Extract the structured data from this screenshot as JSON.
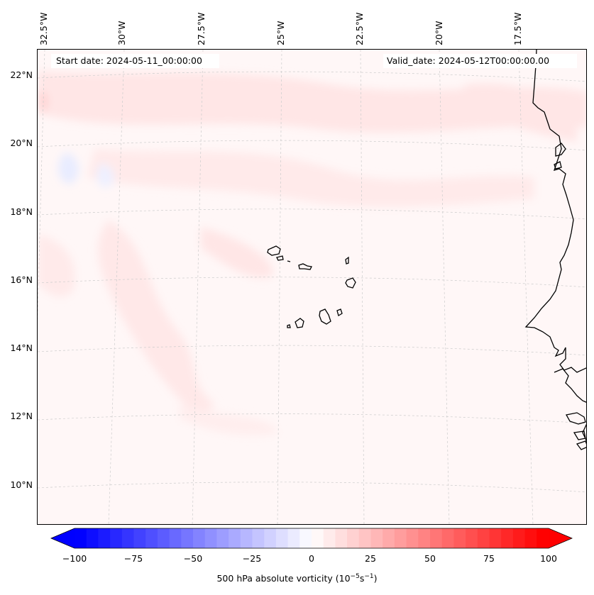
{
  "map": {
    "start_date": "Start date: 2024-05-11_00:00:00",
    "valid_date": "Valid_date: 2024-05-12T00:00:00.00",
    "lon_labels": [
      "32.5°W",
      "30°W",
      "27.5°W",
      "25°W",
      "22.5°W",
      "20°W",
      "17.5°W"
    ],
    "lat_labels": [
      "22°N",
      "20°N",
      "18°N",
      "16°N",
      "14°N",
      "12°N",
      "10°N"
    ],
    "field": "500 hPa absolute vorticity",
    "region": "Cabo Verde islands and West African coast"
  },
  "colorbar": {
    "label_main": "500 hPa absolute vorticity (10",
    "label_exp1": "−5",
    "label_mid": "s",
    "label_exp2": "−1",
    "label_end": ")",
    "ticks": [
      "−100",
      "−75",
      "−50",
      "−25",
      "0",
      "25",
      "50",
      "75",
      "100"
    ],
    "min": -100,
    "max": 100,
    "colors": {
      "negative": "#0000ff",
      "zero": "#ffffff",
      "positive": "#ff0000"
    }
  }
}
